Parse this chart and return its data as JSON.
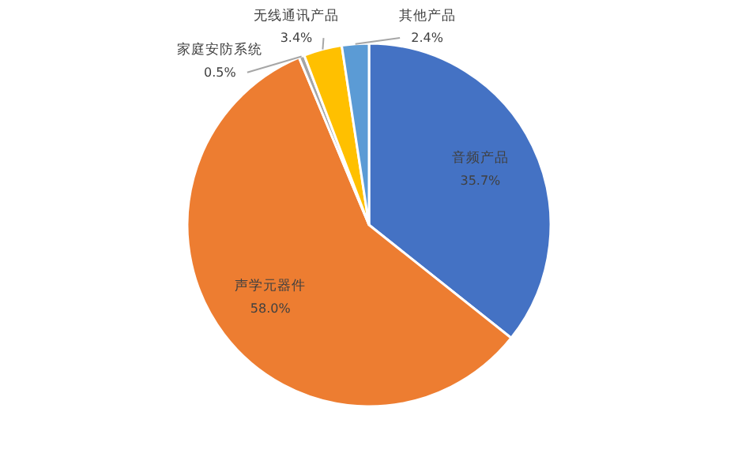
{
  "chart_data": {
    "type": "pie",
    "categories": [
      "音频产品",
      "声学元器件",
      "家庭安防系统",
      "无线通讯产品",
      "其他产品"
    ],
    "values": [
      35.7,
      58.0,
      0.5,
      3.4,
      2.4
    ],
    "colors": [
      "#4472c4",
      "#ed7d31",
      "#a5a5a5",
      "#ffc000",
      "#5b9bd5"
    ],
    "value_labels": [
      "35.7%",
      "58.0%",
      "0.5%",
      "3.4%",
      "2.4%"
    ]
  }
}
